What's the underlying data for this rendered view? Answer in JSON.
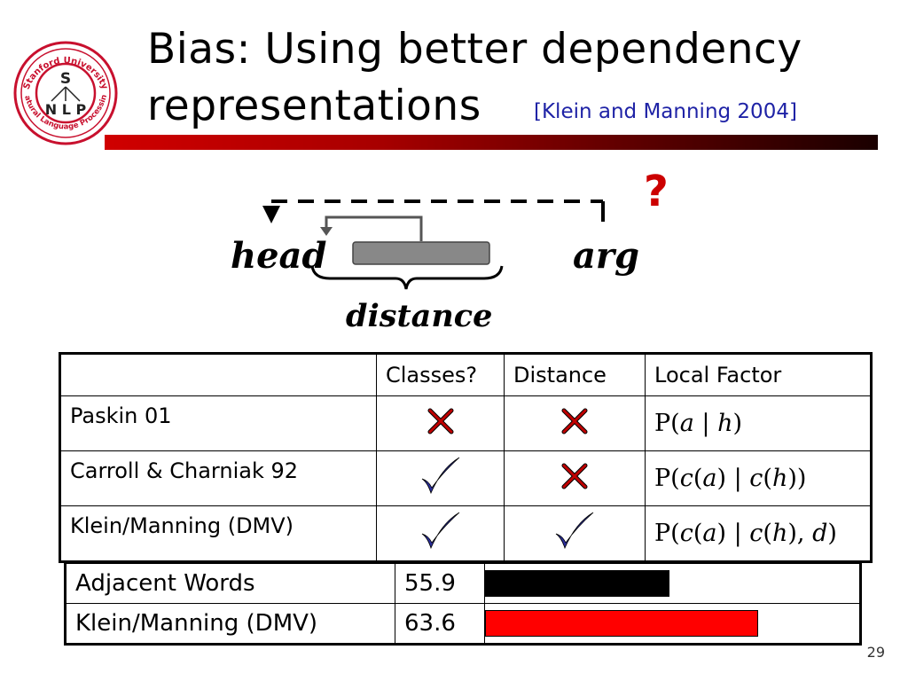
{
  "logo": {
    "arc_text_top": "Stanford University",
    "arc_text_bottom": "Natural Language Processing",
    "letter_s": "S",
    "letters_nlp": "N L P",
    "color": "#c8102e"
  },
  "title": {
    "line1": "Bias: Using better dependency",
    "line2": "representations",
    "citation": "[Klein and Manning 2004]"
  },
  "diagram": {
    "head_label": "head",
    "arg_label": "arg",
    "distance_label": "distance",
    "question_mark": "?",
    "question_color": "#cc0000",
    "box_color": "#888888"
  },
  "factor_table": {
    "headers": [
      "",
      "Classes?",
      "Distance",
      "Local Factor"
    ],
    "rows": [
      {
        "name": "Paskin 01",
        "classes": "cross-icon",
        "distance": "cross-icon",
        "formula": {
          "P": "P(",
          "a": "a",
          "bar": " | ",
          "h": "h",
          "close": ")"
        }
      },
      {
        "name": "Carroll & Charniak 92",
        "classes": "check-icon",
        "distance": "cross-icon",
        "formula": {
          "P": "P(",
          "c1": "c",
          "o1": "(",
          "a": "a",
          "c1c": ")",
          "bar": " | ",
          "c2": "c",
          "o2": "(",
          "h": "h",
          "close": "))"
        }
      },
      {
        "name": "Klein/Manning (DMV)",
        "classes": "check-icon",
        "distance": "check-icon",
        "formula": {
          "P": "P(",
          "c1": "c",
          "o1": "(",
          "a": "a",
          "c1c": ")",
          "bar": " | ",
          "c2": "c",
          "o2": "(",
          "h": "h",
          "comma": "), ",
          "d": "d",
          "close": ")"
        }
      }
    ],
    "cross_color": "#c00000",
    "check_color": "#2b2f9e"
  },
  "chart_data": {
    "type": "bar",
    "categories": [
      "Adjacent Words",
      "Klein/Manning (DMV)"
    ],
    "values": [
      55.9,
      63.6
    ],
    "colors": [
      "#000000",
      "#ff0000"
    ],
    "orientation": "horizontal"
  },
  "page_number": "29"
}
